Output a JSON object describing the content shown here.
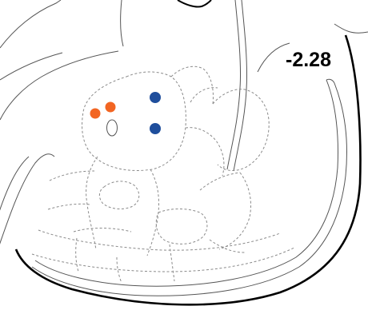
{
  "figure": {
    "section_label": "-2.28"
  },
  "markers": [
    {
      "group": "orange",
      "color": "#f26522"
    },
    {
      "group": "orange",
      "color": "#f26522"
    },
    {
      "group": "blue",
      "color": "#1f4e9c"
    },
    {
      "group": "blue",
      "color": "#1f4e9c"
    }
  ],
  "colors": {
    "outline": "#000000",
    "region_line": "#8a8a8a",
    "dashed_line": "#9a9a9a"
  }
}
